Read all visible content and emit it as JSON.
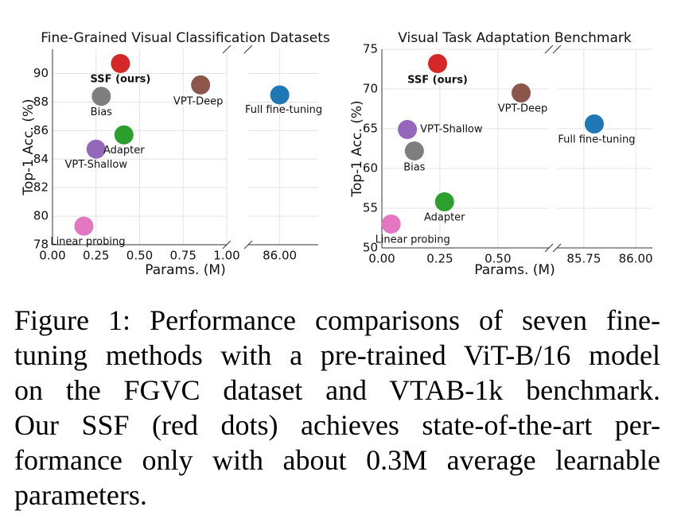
{
  "chart_data": [
    {
      "type": "scatter",
      "title": "Fine-Grained Visual Classification Datasets",
      "xlabel": "Params. (M)",
      "ylabel": "Top-1 Acc. (%)",
      "ylim": [
        78,
        91.7
      ],
      "yticks": [
        78,
        80,
        82,
        84,
        86,
        88,
        90
      ],
      "grid": true,
      "panels": [
        {
          "xlim": [
            0,
            1.0
          ],
          "xticks": [
            {
              "value": 0,
              "label": "0.00"
            },
            {
              "value": 0.25,
              "label": "0.25"
            },
            {
              "value": 0.5,
              "label": "0.50"
            },
            {
              "value": 0.75,
              "label": "0.75"
            },
            {
              "value": 1.0,
              "label": "1.00"
            }
          ]
        },
        {
          "xlim": [
            85.82,
            86.22
          ],
          "xticks": [
            {
              "value": 86,
              "label": "86.00"
            }
          ]
        }
      ],
      "series": [
        {
          "name": "SSF (ours)",
          "color": "#d62728",
          "x": [
            0.39
          ],
          "values": [
            90.7
          ]
        },
        {
          "name": "VPT-Deep",
          "color": "#8c564b",
          "x": [
            0.85
          ],
          "values": [
            89.2
          ]
        },
        {
          "name": "VPT-Shallow",
          "color": "#9467bd",
          "x": [
            0.25
          ],
          "values": [
            84.7
          ]
        },
        {
          "name": "Bias",
          "color": "#7f7f7f",
          "x": [
            0.28
          ],
          "values": [
            88.4
          ]
        },
        {
          "name": "Adapter",
          "color": "#2ca02c",
          "x": [
            0.41
          ],
          "values": [
            85.7
          ]
        },
        {
          "name": "Linear probing",
          "color": "#e377c2",
          "x": [
            0.18
          ],
          "values": [
            79.3
          ]
        },
        {
          "name": "Full fine-tuning",
          "color": "#1f77b4",
          "x": [
            86.0
          ],
          "values": [
            88.5
          ]
        }
      ]
    },
    {
      "type": "scatter",
      "title": "Visual Task Adaptation Benchmark",
      "xlabel": "Params. (M)",
      "ylabel": "Top-1 Acc. (%)",
      "ylim": [
        50,
        75
      ],
      "yticks": [
        50,
        55,
        60,
        65,
        70,
        75
      ],
      "grid": true,
      "panels": [
        {
          "xlim": [
            0,
            0.72
          ],
          "xticks": [
            {
              "value": 0,
              "label": "0.00"
            },
            {
              "value": 0.25,
              "label": "0.25"
            },
            {
              "value": 0.5,
              "label": "0.50"
            }
          ]
        },
        {
          "xlim": [
            85.62,
            86.08
          ],
          "xticks": [
            {
              "value": 85.75,
              "label": "85.75"
            },
            {
              "value": 86,
              "label": "86.00"
            }
          ]
        }
      ],
      "series": [
        {
          "name": "SSF (ours)",
          "color": "#d62728",
          "x": [
            0.24
          ],
          "values": [
            73.2
          ]
        },
        {
          "name": "VPT-Deep",
          "color": "#8c564b",
          "x": [
            0.6
          ],
          "values": [
            69.5
          ]
        },
        {
          "name": "VPT-Shallow",
          "color": "#9467bd",
          "x": [
            0.11
          ],
          "values": [
            64.9
          ]
        },
        {
          "name": "Bias",
          "color": "#7f7f7f",
          "x": [
            0.14
          ],
          "values": [
            62.2
          ]
        },
        {
          "name": "Adapter",
          "color": "#2ca02c",
          "x": [
            0.27
          ],
          "values": [
            55.8
          ]
        },
        {
          "name": "Linear probing",
          "color": "#e377c2",
          "x": [
            0.04
          ],
          "values": [
            53.0
          ]
        },
        {
          "name": "Full fine-tuning",
          "color": "#1f77b4",
          "x": [
            85.8
          ],
          "values": [
            65.6
          ]
        }
      ]
    }
  ],
  "caption": [
    "Figure 1: Performance comparisons of seven fine-",
    "tuning methods with a pre-trained ViT-B/16 model",
    "on the FGVC dataset and VTAB-1k benchmark.",
    "Our SSF (red dots) achieves state-of-the-art per-",
    "formance only with about 0.3M average learnable",
    "parameters."
  ]
}
